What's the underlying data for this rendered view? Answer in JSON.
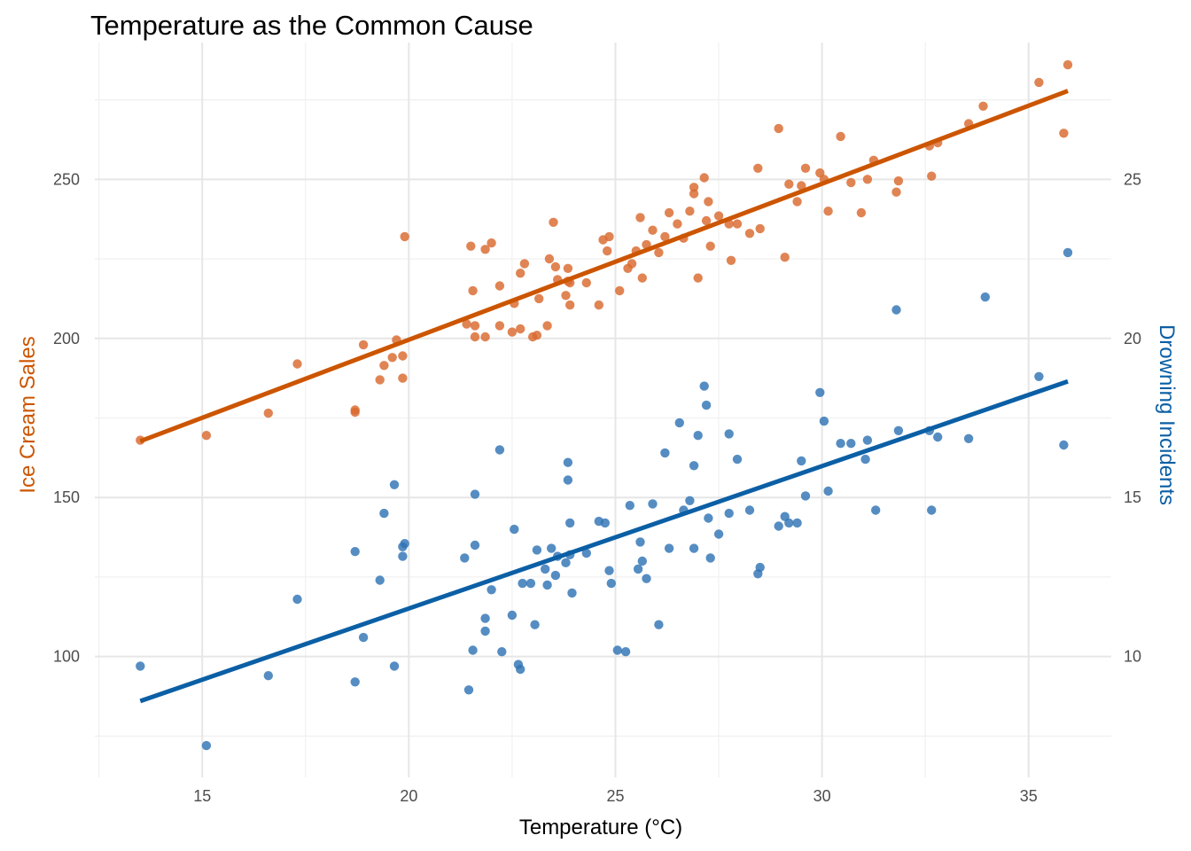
{
  "chart_data": {
    "type": "scatter",
    "title": "Temperature as the Common Cause",
    "xlabel": "Temperature (°C)",
    "ylabel": "Ice Cream Sales",
    "y2label": "Drowning Incidents",
    "xlim": [
      12.4,
      37.0
    ],
    "ylim": [
      62,
      293
    ],
    "y2lim": [
      6.2,
      29.3
    ],
    "x_ticks": [
      15,
      20,
      25,
      30,
      35
    ],
    "y_ticks": [
      100,
      150,
      200,
      250
    ],
    "y2_ticks": [
      10,
      15,
      20,
      25
    ],
    "grid": true,
    "colors": {
      "ice_cream": "#cc5500",
      "ice_cream_points": "#d9692e",
      "drowning": "#0b5fa5",
      "drowning_points": "#2f74b5",
      "grid": "#e6e6e6",
      "tick_text": "#4d4d4d"
    },
    "series": [
      {
        "axis": "left",
        "points": [
          [
            13.5,
            168
          ],
          [
            15.1,
            169.5
          ],
          [
            16.6,
            176.5
          ],
          [
            17.3,
            192
          ],
          [
            18.7,
            177.5
          ],
          [
            18.7,
            176.8
          ],
          [
            18.9,
            198
          ],
          [
            19.3,
            187
          ],
          [
            19.4,
            191.5
          ],
          [
            19.6,
            194
          ],
          [
            19.7,
            199.5
          ],
          [
            19.85,
            187.5
          ],
          [
            19.85,
            194.5
          ],
          [
            19.9,
            232
          ],
          [
            21.4,
            204.5
          ],
          [
            21.5,
            229
          ],
          [
            21.55,
            215
          ],
          [
            21.6,
            200.5
          ],
          [
            21.6,
            204
          ],
          [
            21.85,
            228
          ],
          [
            21.85,
            200.5
          ],
          [
            22.0,
            230
          ],
          [
            22.2,
            204
          ],
          [
            22.2,
            216.5
          ],
          [
            22.5,
            202
          ],
          [
            22.55,
            211
          ],
          [
            22.7,
            203
          ],
          [
            22.7,
            220.5
          ],
          [
            22.8,
            223.5
          ],
          [
            23.0,
            200.5
          ],
          [
            23.1,
            201
          ],
          [
            23.15,
            212.5
          ],
          [
            23.35,
            204
          ],
          [
            23.4,
            225
          ],
          [
            23.5,
            236.5
          ],
          [
            23.55,
            222.5
          ],
          [
            23.6,
            218.5
          ],
          [
            23.8,
            213.5
          ],
          [
            23.85,
            222
          ],
          [
            23.85,
            218
          ],
          [
            23.9,
            210.5
          ],
          [
            23.9,
            217.5
          ],
          [
            24.3,
            217.5
          ],
          [
            24.6,
            210.5
          ],
          [
            24.7,
            231
          ],
          [
            24.8,
            227.5
          ],
          [
            24.85,
            232
          ],
          [
            25.1,
            215
          ],
          [
            25.3,
            222
          ],
          [
            25.4,
            223.5
          ],
          [
            25.5,
            227.5
          ],
          [
            25.6,
            238
          ],
          [
            25.65,
            219
          ],
          [
            25.75,
            229.5
          ],
          [
            25.9,
            234
          ],
          [
            26.05,
            227
          ],
          [
            26.2,
            232
          ],
          [
            26.3,
            239.5
          ],
          [
            26.5,
            236
          ],
          [
            26.65,
            231.5
          ],
          [
            26.8,
            240
          ],
          [
            26.9,
            245.5
          ],
          [
            26.9,
            247.5
          ],
          [
            27.0,
            219
          ],
          [
            27.15,
            250.5
          ],
          [
            27.2,
            237
          ],
          [
            27.25,
            243
          ],
          [
            27.3,
            229
          ],
          [
            27.5,
            238.5
          ],
          [
            27.75,
            236
          ],
          [
            27.8,
            224.5
          ],
          [
            27.95,
            236
          ],
          [
            28.25,
            233
          ],
          [
            28.45,
            253.5
          ],
          [
            28.5,
            234.5
          ],
          [
            28.95,
            266
          ],
          [
            29.1,
            225.5
          ],
          [
            29.2,
            248.5
          ],
          [
            29.4,
            243
          ],
          [
            29.5,
            248
          ],
          [
            29.6,
            253.5
          ],
          [
            29.95,
            252
          ],
          [
            30.05,
            250
          ],
          [
            30.15,
            240
          ],
          [
            30.45,
            263.5
          ],
          [
            30.7,
            249
          ],
          [
            30.95,
            239.5
          ],
          [
            31.1,
            250
          ],
          [
            31.25,
            256
          ],
          [
            31.8,
            246
          ],
          [
            31.85,
            249.5
          ],
          [
            32.6,
            260.5
          ],
          [
            32.65,
            251
          ],
          [
            32.8,
            261.5
          ],
          [
            33.55,
            267.5
          ],
          [
            33.9,
            273
          ],
          [
            35.25,
            280.5
          ],
          [
            35.85,
            264.5
          ],
          [
            35.95,
            286
          ]
        ],
        "trend": [
          [
            13.5,
            167.7
          ],
          [
            35.95,
            277.8
          ]
        ]
      },
      {
        "axis": "right",
        "points": [
          [
            13.5,
            9.7
          ],
          [
            15.1,
            7.2
          ],
          [
            16.6,
            9.4
          ],
          [
            17.3,
            11.8
          ],
          [
            18.7,
            13.3
          ],
          [
            18.7,
            9.2
          ],
          [
            18.9,
            10.6
          ],
          [
            19.3,
            12.4
          ],
          [
            19.4,
            14.5
          ],
          [
            19.65,
            15.4
          ],
          [
            19.65,
            9.7
          ],
          [
            19.85,
            13.45
          ],
          [
            19.85,
            13.15
          ],
          [
            19.9,
            13.55
          ],
          [
            21.35,
            13.1
          ],
          [
            21.45,
            8.95
          ],
          [
            21.55,
            10.2
          ],
          [
            21.6,
            13.5
          ],
          [
            21.6,
            15.1
          ],
          [
            21.85,
            11.2
          ],
          [
            21.85,
            10.8
          ],
          [
            22.0,
            12.1
          ],
          [
            22.2,
            16.5
          ],
          [
            22.25,
            10.15
          ],
          [
            22.5,
            11.3
          ],
          [
            22.55,
            14.0
          ],
          [
            22.65,
            9.75
          ],
          [
            22.7,
            9.6
          ],
          [
            22.75,
            12.3
          ],
          [
            22.95,
            12.3
          ],
          [
            23.05,
            11.0
          ],
          [
            23.1,
            13.35
          ],
          [
            23.3,
            12.75
          ],
          [
            23.35,
            12.25
          ],
          [
            23.45,
            13.4
          ],
          [
            23.55,
            12.55
          ],
          [
            23.6,
            13.15
          ],
          [
            23.8,
            12.95
          ],
          [
            23.85,
            16.1
          ],
          [
            23.85,
            15.55
          ],
          [
            23.9,
            13.2
          ],
          [
            23.9,
            14.2
          ],
          [
            23.95,
            12.0
          ],
          [
            24.3,
            13.25
          ],
          [
            24.6,
            14.25
          ],
          [
            24.75,
            14.2
          ],
          [
            24.85,
            12.7
          ],
          [
            24.9,
            12.3
          ],
          [
            25.05,
            10.2
          ],
          [
            25.25,
            10.15
          ],
          [
            25.35,
            14.75
          ],
          [
            25.55,
            12.75
          ],
          [
            25.6,
            13.6
          ],
          [
            25.65,
            13.0
          ],
          [
            25.75,
            12.45
          ],
          [
            25.9,
            14.8
          ],
          [
            26.05,
            11.0
          ],
          [
            26.2,
            16.4
          ],
          [
            26.3,
            13.4
          ],
          [
            26.55,
            17.35
          ],
          [
            26.65,
            14.6
          ],
          [
            26.8,
            14.9
          ],
          [
            26.9,
            16.0
          ],
          [
            26.9,
            13.4
          ],
          [
            27.0,
            16.95
          ],
          [
            27.15,
            18.5
          ],
          [
            27.2,
            17.9
          ],
          [
            27.25,
            14.35
          ],
          [
            27.3,
            13.1
          ],
          [
            27.5,
            13.85
          ],
          [
            27.75,
            17.0
          ],
          [
            27.75,
            14.5
          ],
          [
            27.95,
            16.2
          ],
          [
            28.25,
            14.6
          ],
          [
            28.45,
            12.6
          ],
          [
            28.5,
            12.8
          ],
          [
            28.95,
            14.1
          ],
          [
            29.1,
            14.4
          ],
          [
            29.2,
            14.2
          ],
          [
            29.4,
            14.2
          ],
          [
            29.5,
            16.15
          ],
          [
            29.6,
            15.05
          ],
          [
            29.95,
            18.3
          ],
          [
            30.05,
            17.4
          ],
          [
            30.15,
            15.2
          ],
          [
            30.45,
            16.7
          ],
          [
            30.7,
            16.7
          ],
          [
            31.05,
            16.2
          ],
          [
            31.1,
            16.8
          ],
          [
            31.3,
            14.6
          ],
          [
            31.8,
            20.9
          ],
          [
            31.85,
            17.1
          ],
          [
            32.6,
            17.1
          ],
          [
            32.65,
            14.6
          ],
          [
            32.8,
            16.9
          ],
          [
            33.55,
            16.85
          ],
          [
            33.95,
            21.3
          ],
          [
            35.25,
            18.8
          ],
          [
            35.85,
            16.65
          ],
          [
            35.95,
            22.7
          ]
        ],
        "trend": [
          [
            13.5,
            8.6
          ],
          [
            35.95,
            18.65
          ]
        ]
      }
    ]
  }
}
